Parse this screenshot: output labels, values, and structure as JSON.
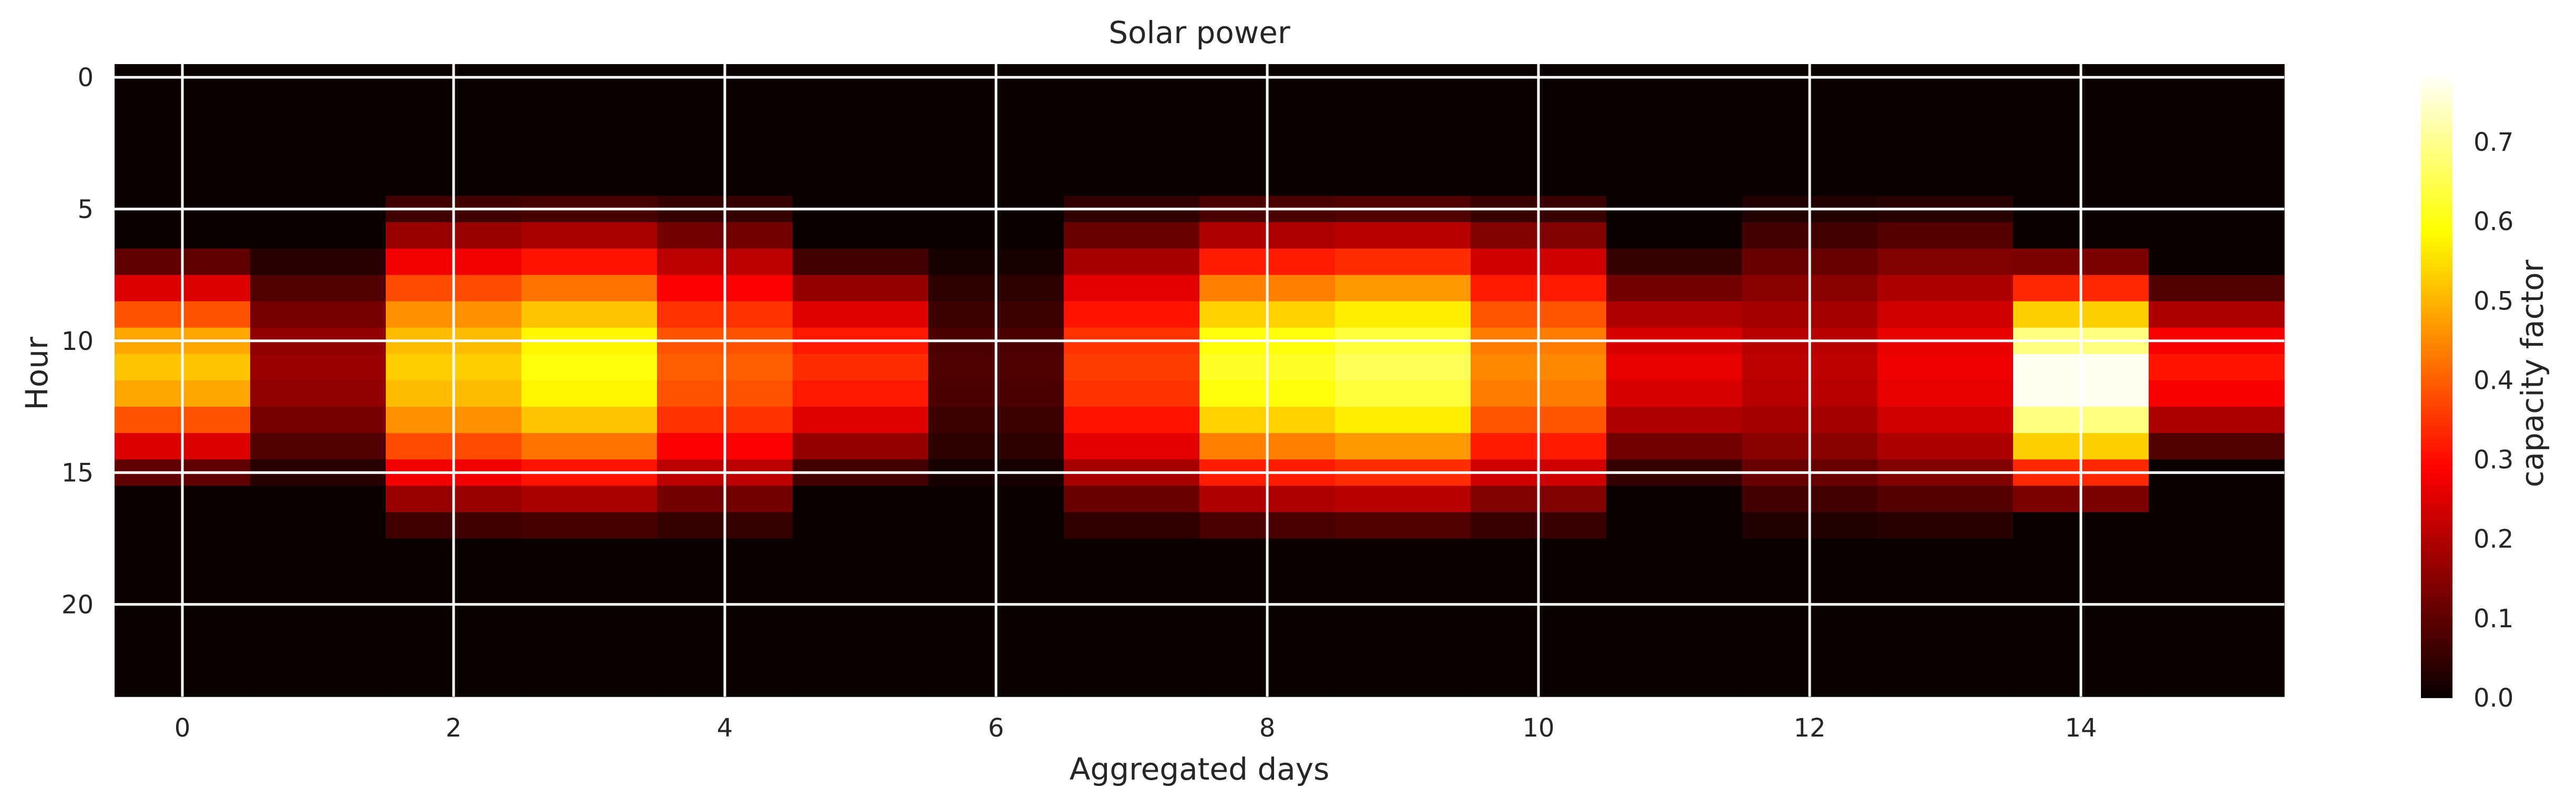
{
  "chart_data": {
    "type": "heatmap",
    "title": "Solar power",
    "xlabel": "Aggregated days",
    "ylabel": "Hour",
    "colorbar_label": "capacity factor",
    "colormap": "hot",
    "vmin": 0.0,
    "vmax": 0.79,
    "x_ticks": [
      0,
      2,
      4,
      6,
      8,
      10,
      12,
      14
    ],
    "y_ticks": [
      0,
      5,
      10,
      15,
      20
    ],
    "colorbar_ticks": [
      "0.0",
      "0.1",
      "0.2",
      "0.3",
      "0.4",
      "0.5",
      "0.6",
      "0.7"
    ],
    "grid": true,
    "days": 16,
    "hours": 24,
    "day_profiles": [
      {
        "day": 0,
        "sunrise": 6,
        "sunset": 16,
        "peak": 0.52
      },
      {
        "day": 1,
        "sunrise": 6,
        "sunset": 16,
        "peak": 0.17
      },
      {
        "day": 2,
        "sunrise": 4,
        "sunset": 18,
        "peak": 0.53
      },
      {
        "day": 3,
        "sunrise": 4,
        "sunset": 18,
        "peak": 0.6
      },
      {
        "day": 4,
        "sunrise": 4,
        "sunset": 18,
        "peak": 0.4
      },
      {
        "day": 5,
        "sunrise": 6,
        "sunset": 16,
        "peak": 0.34
      },
      {
        "day": 6,
        "sunrise": 6,
        "sunset": 16,
        "peak": 0.08
      },
      {
        "day": 7,
        "sunrise": 4,
        "sunset": 18,
        "peak": 0.36
      },
      {
        "day": 8,
        "sunrise": 4,
        "sunset": 18,
        "peak": 0.62
      },
      {
        "day": 9,
        "sunrise": 4,
        "sunset": 18,
        "peak": 0.66
      },
      {
        "day": 10,
        "sunrise": 4,
        "sunset": 18,
        "peak": 0.45
      },
      {
        "day": 11,
        "sunrise": 6,
        "sunset": 16,
        "peak": 0.26
      },
      {
        "day": 12,
        "sunrise": 4,
        "sunset": 18,
        "peak": 0.21
      },
      {
        "day": 13,
        "sunrise": 4,
        "sunset": 18,
        "peak": 0.27
      },
      {
        "day": 14,
        "sunrise": 6,
        "sunset": 17,
        "peak": 0.79
      },
      {
        "day": 15,
        "sunrise": 7,
        "sunset": 15,
        "peak": 0.31
      }
    ]
  }
}
